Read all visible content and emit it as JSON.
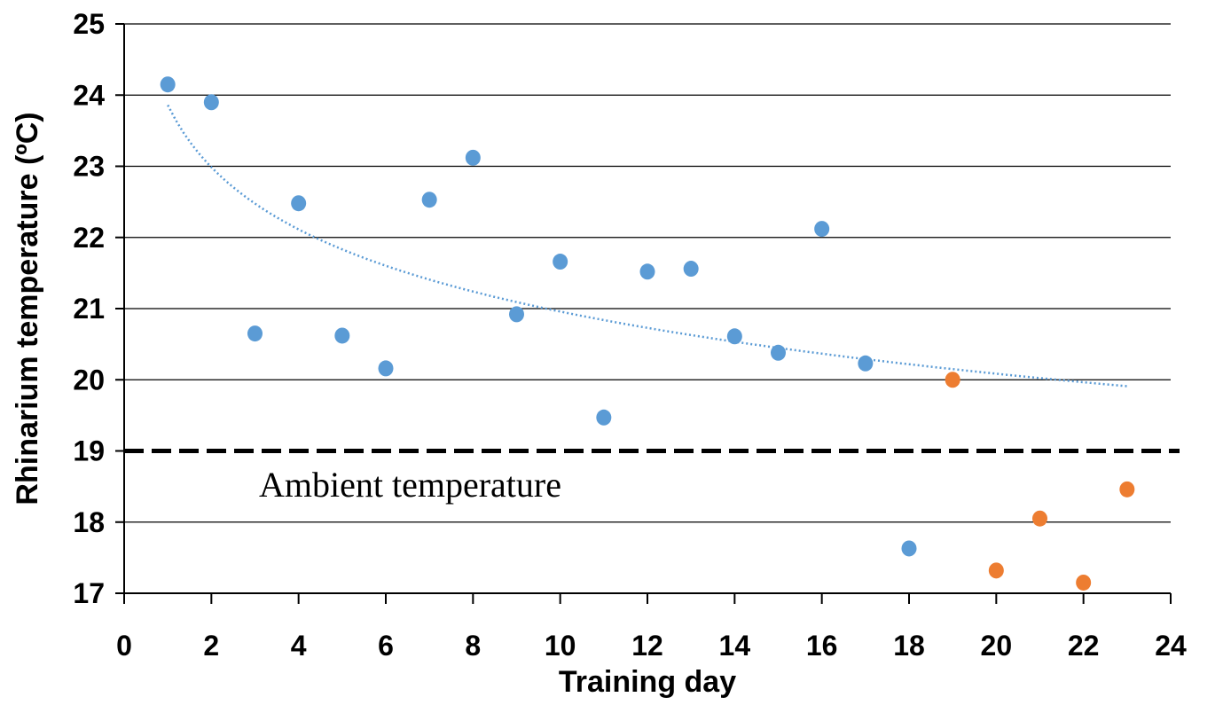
{
  "chart_data": {
    "type": "scatter",
    "xlabel": "Training day",
    "ylabel": "Rhinarium temperature (ºC)",
    "xlim": [
      0,
      24
    ],
    "ylim": [
      17,
      25
    ],
    "x_ticks": [
      "0",
      "2",
      "4",
      "6",
      "8",
      "10",
      "12",
      "14",
      "16",
      "18",
      "20",
      "22",
      "24"
    ],
    "y_ticks": [
      "17",
      "18",
      "19",
      "20",
      "21",
      "22",
      "23",
      "24",
      "25"
    ],
    "grid": "horizontal",
    "series": [
      {
        "color": "#5B9BD5",
        "points": [
          {
            "x": 1,
            "y": 24.15
          },
          {
            "x": 2,
            "y": 23.9
          },
          {
            "x": 3,
            "y": 20.65
          },
          {
            "x": 4,
            "y": 22.48
          },
          {
            "x": 5,
            "y": 20.62
          },
          {
            "x": 6,
            "y": 20.16
          },
          {
            "x": 7,
            "y": 22.53
          },
          {
            "x": 8,
            "y": 23.12
          },
          {
            "x": 9,
            "y": 20.92
          },
          {
            "x": 10,
            "y": 21.66
          },
          {
            "x": 11,
            "y": 19.47
          },
          {
            "x": 12,
            "y": 21.52
          },
          {
            "x": 13,
            "y": 21.56
          },
          {
            "x": 14,
            "y": 20.61
          },
          {
            "x": 15,
            "y": 20.38
          },
          {
            "x": 16,
            "y": 22.12
          },
          {
            "x": 17,
            "y": 20.23
          },
          {
            "x": 18,
            "y": 17.63
          }
        ]
      },
      {
        "color": "#ED7D31",
        "points": [
          {
            "x": 19,
            "y": 20.0
          },
          {
            "x": 20,
            "y": 17.32
          },
          {
            "x": 21,
            "y": 18.05
          },
          {
            "x": 22,
            "y": 17.15
          },
          {
            "x": 23,
            "y": 18.46
          }
        ]
      }
    ],
    "trendline": {
      "kind": "logarithmic",
      "color": "#5B9BD5",
      "x_range": [
        1,
        23
      ],
      "intercept": 23.86,
      "slope": -1.26
    },
    "reference_line": {
      "y": 19.0,
      "style": "dashed",
      "color": "#000000",
      "label": "Ambient temperature"
    }
  }
}
